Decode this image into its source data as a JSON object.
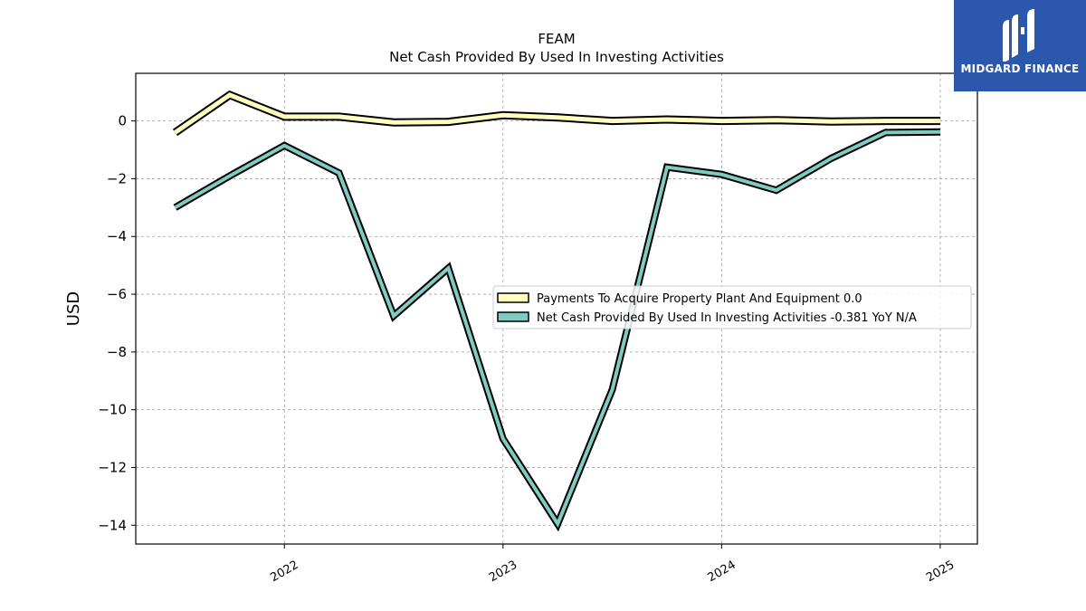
{
  "brand": {
    "name": "MIDGARD FINANCE",
    "logo_icon": "midgard-m-logo-icon",
    "bg_color": "#2b57ad"
  },
  "chart_data": {
    "type": "line",
    "title": "FEAM",
    "subtitle": "Net Cash Provided By Used In Investing Activities",
    "ylabel": "USD",
    "xlabel": "",
    "ylim": [
      -14.65,
      1.65
    ],
    "xlim": [
      2021.32,
      2025.17
    ],
    "yticks": [
      0,
      -2,
      -4,
      -6,
      -8,
      -10,
      -12,
      -14
    ],
    "ytick_labels": [
      "0",
      "−2",
      "−4",
      "−6",
      "−8",
      "−10",
      "−12",
      "−14"
    ],
    "xticks": [
      2022,
      2023,
      2024,
      2025
    ],
    "xtick_labels": [
      "2022",
      "2023",
      "2024",
      "2025"
    ],
    "grid": true,
    "legend_position": "center-right",
    "series": [
      {
        "name": "Payments To Acquire Property Plant And Equipment",
        "legend_label": "Payments To Acquire Property Plant And Equipment  0.0",
        "color": "#ffffbf",
        "x": [
          2021.5,
          2021.75,
          2022.0,
          2022.25,
          2022.5,
          2022.75,
          2023.0,
          2023.25,
          2023.5,
          2023.75,
          2024.0,
          2024.25,
          2024.5,
          2024.75,
          2025.0
        ],
        "values": [
          -0.4,
          0.9,
          0.15,
          0.15,
          -0.05,
          -0.03,
          0.2,
          0.12,
          0.0,
          0.05,
          0.0,
          0.03,
          -0.02,
          0.0,
          0.0
        ]
      },
      {
        "name": "Net Cash Provided By Used In Investing Activities",
        "legend_label": "Net Cash Provided By Used In Investing Activities  -0.381 YoY N/A",
        "color": "#80cbc0",
        "x": [
          2021.5,
          2021.75,
          2022.0,
          2022.25,
          2022.5,
          2022.75,
          2023.0,
          2023.25,
          2023.5,
          2023.75,
          2024.0,
          2024.25,
          2024.5,
          2024.75,
          2025.0
        ],
        "values": [
          -3.0,
          -1.9,
          -0.85,
          -1.8,
          -6.75,
          -5.1,
          -11.0,
          -13.95,
          -9.3,
          -1.6,
          -1.85,
          -2.4,
          -1.3,
          -0.4,
          -0.381
        ]
      }
    ]
  }
}
